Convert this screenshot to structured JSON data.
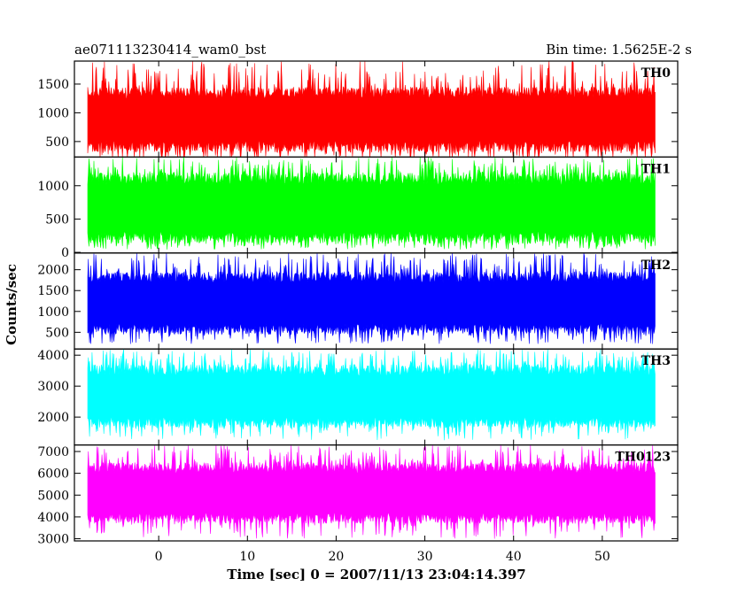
{
  "header": {
    "title": "ae071113230414_wam0_bst",
    "bin_time": "Bin time: 1.5625E-2 s"
  },
  "chart_data": {
    "type": "line",
    "title": "ae071113230414_wam0_bst",
    "subtitle": "Bin time: 1.5625E-2 s",
    "xlabel": "Time [sec] 0 = 2007/11/13 23:04:14.397",
    "ylabel": "Counts/sec",
    "xlim": [
      -9.5,
      58.5
    ],
    "x_ticks": [
      0,
      10,
      20,
      30,
      40,
      50
    ],
    "x_tick_labels": [
      "0",
      "10",
      "20",
      "30",
      "40",
      "50"
    ],
    "x_data_range": [
      -8.0,
      56.0
    ],
    "bin_time_s": 0.015625,
    "grid": false,
    "panels": [
      {
        "name": "TH0",
        "color": "#ff0000",
        "ylim": [
          230,
          1900
        ],
        "yticks": [
          500,
          1000,
          1500
        ],
        "ytick_labels": [
          "500",
          "1000",
          "1500"
        ],
        "typical_range": [
          320,
          1450
        ],
        "extreme_range": [
          160,
          1900
        ],
        "mean": 880
      },
      {
        "name": "TH1",
        "color": "#00ff00",
        "ylim": [
          -10,
          1430
        ],
        "yticks": [
          0,
          500,
          1000
        ],
        "ytick_labels": [
          "0",
          "500",
          "1000"
        ],
        "typical_range": [
          130,
          1200
        ],
        "extreme_range": [
          40,
          1430
        ],
        "mean": 660
      },
      {
        "name": "TH2",
        "color": "#0000ff",
        "ylim": [
          100,
          2400
        ],
        "yticks": [
          500,
          1000,
          1500,
          2000
        ],
        "ytick_labels": [
          "500",
          "1000",
          "1500",
          "2000"
        ],
        "typical_range": [
          450,
          1950
        ],
        "extreme_range": [
          220,
          2400
        ],
        "mean": 1200
      },
      {
        "name": "TH3",
        "color": "#00ffff",
        "ylim": [
          1100,
          4200
        ],
        "yticks": [
          2000,
          3000,
          4000
        ],
        "ytick_labels": [
          "2000",
          "3000",
          "4000"
        ],
        "typical_range": [
          1650,
          3700
        ],
        "extreme_range": [
          1250,
          4200
        ],
        "mean": 2650
      },
      {
        "name": "TH0123",
        "color": "#ff00ff",
        "ylim": [
          2900,
          7300
        ],
        "yticks": [
          3000,
          4000,
          5000,
          6000,
          7000
        ],
        "ytick_labels": [
          "3000",
          "4000",
          "5000",
          "6000",
          "7000"
        ],
        "typical_range": [
          3700,
          6500
        ],
        "extreme_range": [
          3000,
          7300
        ],
        "mean": 5100
      }
    ]
  }
}
